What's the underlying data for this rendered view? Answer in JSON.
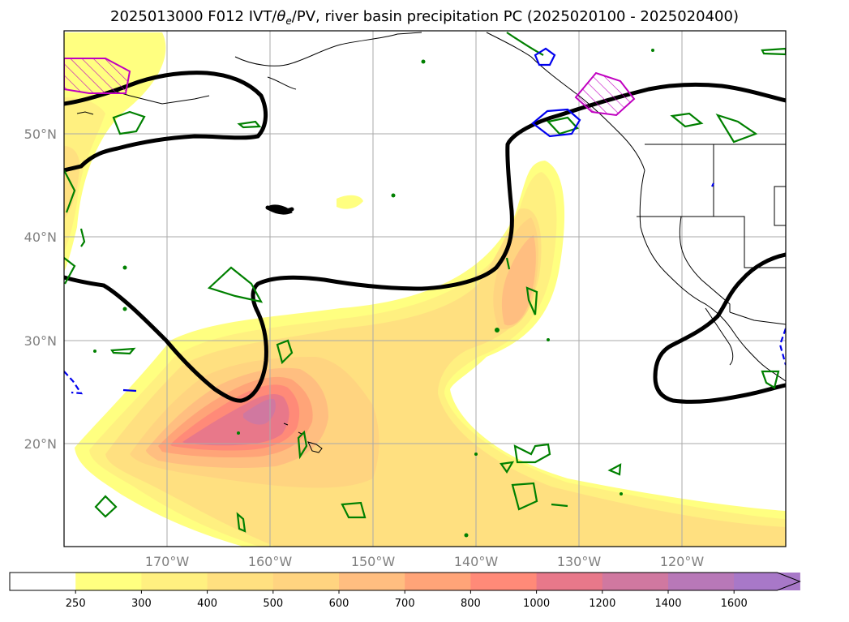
{
  "title": {
    "prefix": "2025013000 F012 IVT/",
    "theta": "θ",
    "theta_sub": "e",
    "suffix": "/PV, river basin precipitation PC (2025020100 - 2025020400)"
  },
  "map": {
    "projection": "cylindrical",
    "lon_range": [
      -180,
      -110
    ],
    "lat_range": [
      10,
      60
    ],
    "lat_labels": [
      {
        "value": 50,
        "text": "50°N"
      },
      {
        "value": 40,
        "text": "40°N"
      },
      {
        "value": 30,
        "text": "30°N"
      },
      {
        "value": 20,
        "text": "20°N"
      }
    ],
    "lon_labels": [
      {
        "value": -170,
        "text": "170°W"
      },
      {
        "value": -160,
        "text": "160°W"
      },
      {
        "value": -150,
        "text": "150°W"
      },
      {
        "value": -140,
        "text": "140°W"
      },
      {
        "value": -130,
        "text": "130°W"
      },
      {
        "value": -120,
        "text": "120°W"
      }
    ],
    "grid": true,
    "layers": [
      "IVT filled contours",
      "theta-e contour (black, thick)",
      "PV contours (green, blue, magenta hatched)",
      "coastlines and state borders"
    ]
  },
  "colorbar": {
    "levels": [
      "250",
      "300",
      "400",
      "500",
      "600",
      "700",
      "800",
      "1000",
      "1200",
      "1400",
      "1600"
    ],
    "colors": [
      "#ffffff",
      "#ffff80",
      "#fff080",
      "#ffe080",
      "#ffd480",
      "#ffbe80",
      "#ffa478",
      "#ff8a78",
      "#e8788a",
      "#d078a0",
      "#b878b8",
      "#a878c8"
    ],
    "extend": "max"
  },
  "colors": {
    "ivt_low": "#ffff80",
    "ivt_high": "#e07090",
    "theta_e_contour": "#000000",
    "pv_green": "#008000",
    "pv_blue": "#0000ee",
    "pv_magenta": "#c000c0"
  }
}
